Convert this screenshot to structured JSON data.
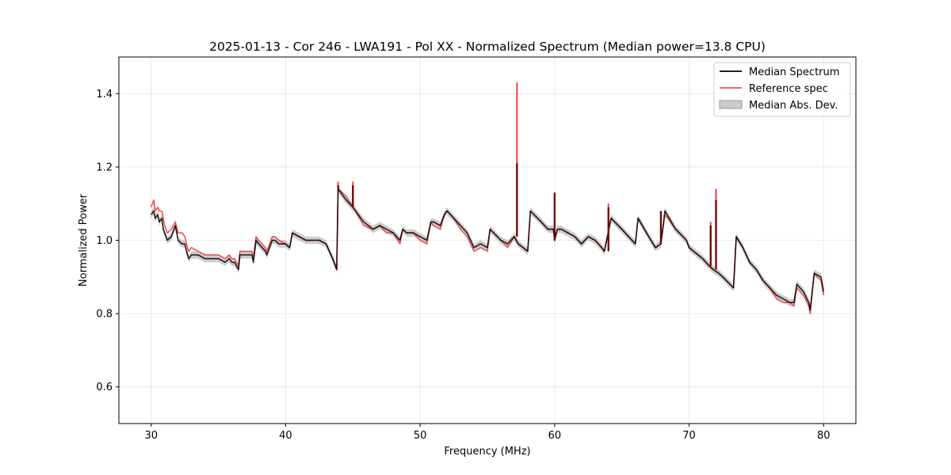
{
  "chart_data": {
    "type": "line",
    "title": "2025-01-13 - Cor 246 - LWA191 - Pol XX - Normalized Spectrum (Median power=13.8 CPU)",
    "xlabel": "Frequency (MHz)",
    "ylabel": "Normalized Power",
    "xlim": [
      27.6,
      82.4
    ],
    "ylim": [
      0.5,
      1.5
    ],
    "xticks": [
      30,
      40,
      50,
      60,
      70,
      80
    ],
    "yticks": [
      0.6,
      0.8,
      1.0,
      1.2,
      1.4
    ],
    "grid": true,
    "legend_position": "top-right",
    "legend": [
      "Median Spectrum",
      "Reference spec",
      "Median Abs. Dev."
    ],
    "colors": {
      "median": "#000000",
      "reference": "#f05050",
      "mad_fill": "#999999"
    },
    "mad_half_width": 0.01,
    "series": [
      {
        "name": "Median Spectrum",
        "x": [
          30.0,
          30.2,
          30.3,
          30.5,
          30.6,
          30.8,
          30.9,
          31.0,
          31.2,
          31.5,
          31.8,
          32.0,
          32.3,
          32.5,
          32.7,
          32.8,
          33.0,
          33.5,
          34.0,
          34.5,
          35.0,
          35.5,
          35.8,
          36.0,
          36.2,
          36.5,
          36.6,
          37.0,
          37.5,
          37.6,
          37.8,
          38.0,
          38.5,
          38.6,
          39.0,
          39.2,
          39.5,
          40.0,
          40.3,
          40.5,
          41.0,
          41.5,
          42.0,
          42.5,
          43.0,
          43.5,
          43.8,
          43.9,
          44.5,
          45.0,
          45.2,
          45.8,
          46.5,
          47.0,
          47.5,
          48.0,
          48.5,
          48.7,
          49.0,
          49.5,
          50.0,
          50.5,
          50.8,
          51.0,
          51.5,
          51.8,
          52.0,
          52.5,
          53.0,
          53.5,
          54.0,
          54.5,
          55.0,
          55.2,
          56.0,
          56.5,
          57.0,
          57.3,
          58.0,
          58.2,
          59.0,
          59.5,
          59.9,
          60.0,
          60.2,
          60.5,
          61.0,
          61.5,
          62.0,
          62.5,
          63.0,
          63.5,
          63.7,
          64.2,
          65.0,
          65.5,
          66.0,
          66.2,
          67.0,
          67.5,
          67.9,
          68.2,
          69.0,
          69.8,
          70.0,
          71.0,
          71.5,
          71.8,
          72.2,
          72.5,
          73.3,
          73.5,
          74.0,
          74.5,
          75.0,
          75.5,
          76.0,
          76.5,
          77.0,
          77.5,
          77.8,
          78.0,
          78.5,
          78.9,
          79.0,
          79.3,
          79.8,
          80.0
        ],
        "values": [
          1.07,
          1.08,
          1.06,
          1.07,
          1.05,
          1.06,
          1.03,
          1.02,
          1.0,
          1.01,
          1.04,
          1.0,
          0.99,
          0.99,
          0.96,
          0.95,
          0.96,
          0.96,
          0.95,
          0.95,
          0.95,
          0.94,
          0.95,
          0.94,
          0.94,
          0.92,
          0.96,
          0.96,
          0.96,
          0.94,
          1.0,
          0.99,
          0.97,
          0.96,
          1.0,
          1.0,
          0.99,
          0.99,
          0.98,
          1.02,
          1.01,
          1.0,
          1.0,
          1.0,
          0.99,
          0.95,
          0.92,
          1.14,
          1.11,
          1.09,
          1.08,
          1.05,
          1.03,
          1.04,
          1.03,
          1.02,
          1.0,
          1.03,
          1.02,
          1.02,
          1.01,
          1.0,
          1.05,
          1.05,
          1.04,
          1.07,
          1.08,
          1.06,
          1.04,
          1.02,
          0.98,
          0.99,
          0.98,
          1.03,
          1.0,
          0.99,
          1.01,
          0.99,
          0.97,
          1.08,
          1.05,
          1.03,
          1.03,
          1.0,
          1.03,
          1.03,
          1.02,
          1.01,
          0.99,
          1.01,
          1.0,
          0.98,
          0.97,
          1.06,
          1.03,
          1.01,
          0.99,
          1.06,
          1.01,
          0.98,
          0.99,
          1.08,
          1.03,
          1.0,
          0.98,
          0.95,
          0.93,
          0.92,
          0.91,
          0.9,
          0.87,
          1.01,
          0.98,
          0.94,
          0.92,
          0.89,
          0.87,
          0.85,
          0.84,
          0.83,
          0.83,
          0.88,
          0.86,
          0.83,
          0.81,
          0.91,
          0.9,
          0.86
        ]
      },
      {
        "name": "Reference spec",
        "x": [
          30.0,
          30.2,
          30.3,
          30.5,
          30.6,
          30.8,
          30.9,
          31.0,
          31.2,
          31.5,
          31.8,
          32.0,
          32.3,
          32.5,
          32.7,
          32.8,
          33.0,
          33.5,
          34.0,
          34.5,
          35.0,
          35.5,
          35.8,
          36.0,
          36.2,
          36.5,
          36.6,
          37.0,
          37.5,
          37.6,
          37.8,
          38.0,
          38.5,
          38.6,
          39.0,
          39.2,
          39.5,
          40.0,
          40.3,
          40.5,
          41.0,
          41.5,
          42.0,
          42.5,
          43.0,
          43.5,
          43.8,
          43.9,
          44.5,
          45.0,
          45.2,
          45.8,
          46.5,
          47.0,
          47.5,
          48.0,
          48.5,
          48.7,
          49.0,
          49.5,
          50.0,
          50.5,
          50.8,
          51.0,
          51.5,
          51.8,
          52.0,
          52.5,
          53.0,
          53.5,
          54.0,
          54.5,
          55.0,
          55.2,
          56.0,
          56.5,
          57.0,
          57.3,
          58.0,
          58.2,
          59.0,
          59.5,
          59.9,
          60.0,
          60.2,
          60.5,
          61.0,
          61.5,
          62.0,
          62.5,
          63.0,
          63.5,
          63.7,
          64.2,
          65.0,
          65.5,
          66.0,
          66.2,
          67.0,
          67.5,
          67.9,
          68.2,
          69.0,
          69.8,
          70.0,
          71.0,
          71.5,
          71.8,
          72.2,
          72.5,
          73.3,
          73.5,
          74.0,
          74.5,
          75.0,
          75.5,
          76.0,
          76.5,
          77.0,
          77.5,
          77.8,
          78.0,
          78.5,
          78.9,
          79.0,
          79.3,
          79.8,
          80.0
        ],
        "values": [
          1.09,
          1.11,
          1.08,
          1.09,
          1.08,
          1.08,
          1.06,
          1.04,
          1.02,
          1.03,
          1.05,
          1.02,
          1.02,
          1.01,
          0.98,
          0.97,
          0.98,
          0.97,
          0.96,
          0.96,
          0.96,
          0.95,
          0.96,
          0.95,
          0.95,
          0.93,
          0.97,
          0.97,
          0.97,
          0.95,
          1.01,
          1.0,
          0.98,
          0.97,
          1.01,
          1.01,
          1.0,
          0.99,
          0.98,
          1.02,
          1.01,
          1.0,
          1.0,
          1.0,
          0.99,
          0.95,
          0.92,
          1.14,
          1.12,
          1.09,
          1.08,
          1.04,
          1.03,
          1.04,
          1.02,
          1.02,
          0.99,
          1.03,
          1.02,
          1.02,
          1.0,
          0.99,
          1.05,
          1.04,
          1.03,
          1.07,
          1.08,
          1.06,
          1.03,
          1.01,
          0.97,
          0.98,
          0.97,
          1.03,
          1.0,
          0.98,
          1.01,
          0.99,
          0.97,
          1.08,
          1.05,
          1.03,
          1.03,
          1.0,
          1.03,
          1.03,
          1.02,
          1.01,
          0.99,
          1.01,
          1.0,
          0.98,
          0.97,
          1.06,
          1.03,
          1.01,
          0.99,
          1.06,
          1.01,
          0.98,
          0.99,
          1.07,
          1.03,
          1.0,
          0.98,
          0.95,
          0.93,
          0.92,
          0.91,
          0.9,
          0.87,
          1.01,
          0.98,
          0.94,
          0.92,
          0.89,
          0.87,
          0.84,
          0.83,
          0.83,
          0.82,
          0.87,
          0.85,
          0.82,
          0.8,
          0.91,
          0.89,
          0.85
        ]
      }
    ],
    "spikes": [
      {
        "x": 43.9,
        "median": 1.15,
        "reference": 1.16
      },
      {
        "x": 45.0,
        "median": 1.15,
        "reference": 1.16
      },
      {
        "x": 57.2,
        "median": 1.21,
        "reference": 1.43
      },
      {
        "x": 60.0,
        "median": 1.13,
        "reference": 1.13
      },
      {
        "x": 64.0,
        "median": 1.09,
        "reference": 1.1
      },
      {
        "x": 67.9,
        "median": 1.08,
        "reference": 1.08
      },
      {
        "x": 71.6,
        "median": 1.04,
        "reference": 1.05
      },
      {
        "x": 72.0,
        "median": 1.11,
        "reference": 1.14
      }
    ]
  }
}
